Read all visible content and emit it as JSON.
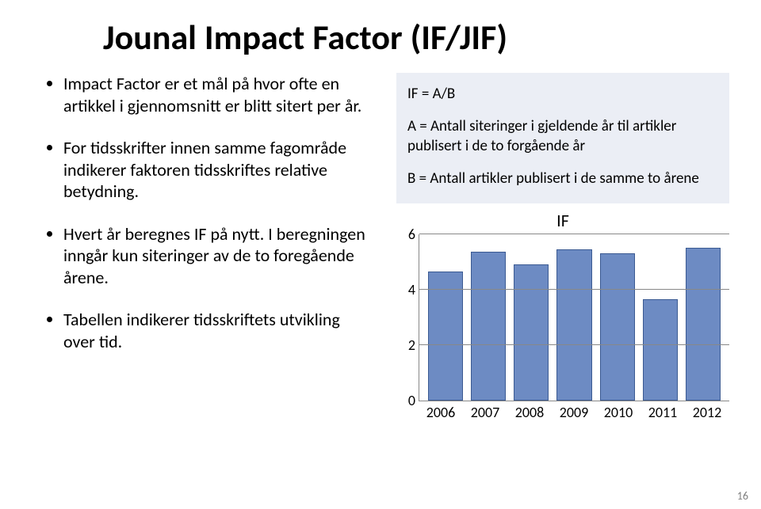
{
  "title": "Jounal Impact Factor (IF/JIF)",
  "bullets": [
    "Impact Factor er et mål på hvor ofte en artikkel i gjennomsnitt er blitt sitert per år.",
    "For tidsskrifter innen samme fagområde indikerer faktoren tidsskriftes relative betydning.",
    "Hvert år beregnes IF på nytt. I beregningen inngår kun siteringer av de to foregående årene.",
    "Tabellen indikerer tidsskriftets utvikling over tid."
  ],
  "formula": {
    "line1": "IF = A/B",
    "line2": "A = Antall siteringer i gjeldende år til artikler publisert i de to forgående år",
    "line3": "B = Antall artikler publisert i de samme to årene"
  },
  "chart": {
    "type": "bar",
    "title": "IF",
    "categories": [
      "2006",
      "2007",
      "2008",
      "2009",
      "2010",
      "2011",
      "2012"
    ],
    "values": [
      4.6,
      5.3,
      4.85,
      5.4,
      5.25,
      3.6,
      5.45
    ],
    "bar_fill": "#6d8bc3",
    "bar_border": "#3b5a92",
    "ylim": [
      0,
      6
    ],
    "yticks": [
      0,
      2,
      4,
      6
    ],
    "grid_color": "#888888",
    "background_color": "#ffffff",
    "title_fontsize": 22,
    "axis_fontsize": 18
  },
  "page_number": "16"
}
